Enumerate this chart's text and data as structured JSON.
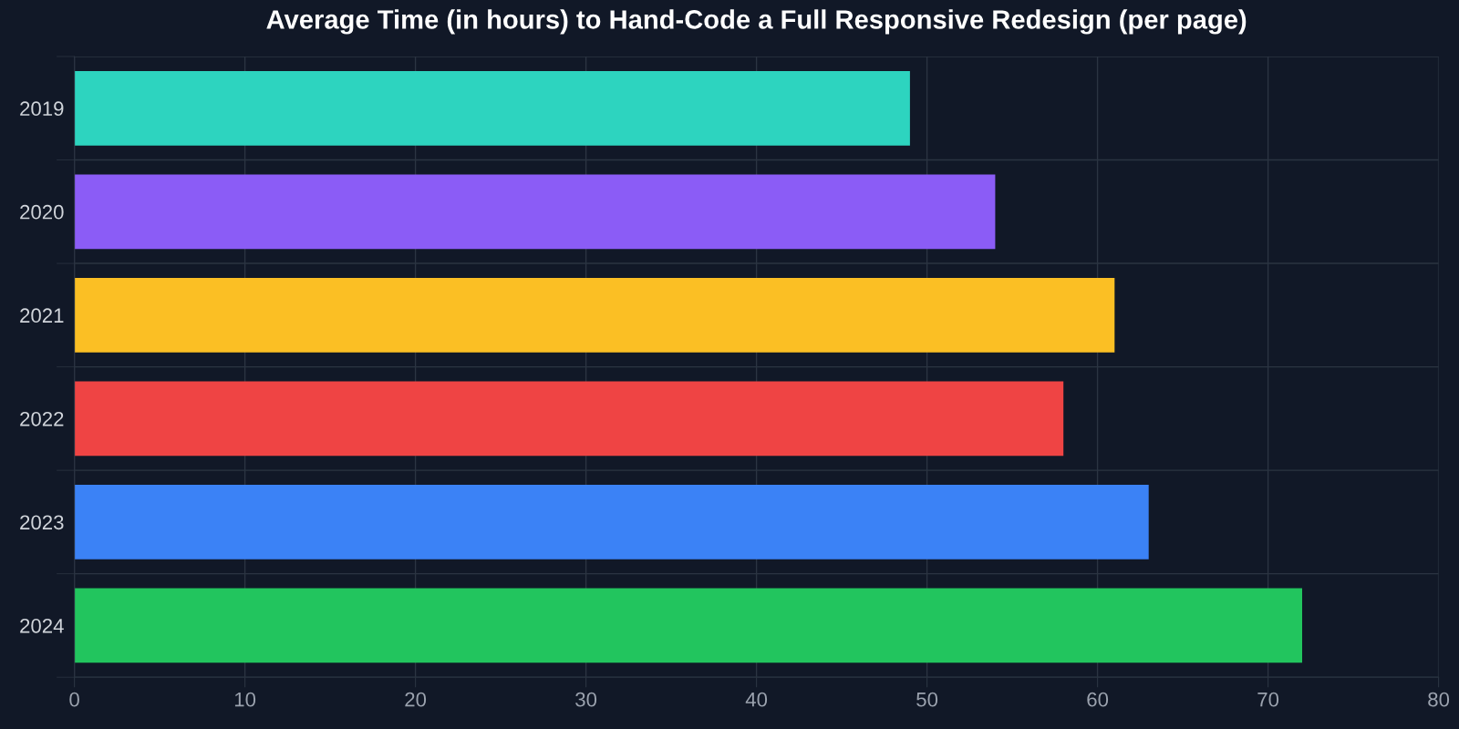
{
  "chart_data": {
    "type": "bar",
    "orientation": "horizontal",
    "title": "Average Time (in hours) to Hand-Code a Full Responsive Redesign (per page)",
    "categories": [
      "2019",
      "2020",
      "2021",
      "2022",
      "2023",
      "2024"
    ],
    "values": [
      49,
      54,
      61,
      58,
      63,
      72
    ],
    "colors": [
      "#2dd4bf",
      "#8b5cf6",
      "#fbbf24",
      "#ef4444",
      "#3b82f6",
      "#22c55e"
    ],
    "xlim": [
      0,
      80
    ],
    "xticks": [
      0,
      10,
      20,
      30,
      40,
      50,
      60,
      70,
      80
    ],
    "grid": true,
    "legend": false
  }
}
